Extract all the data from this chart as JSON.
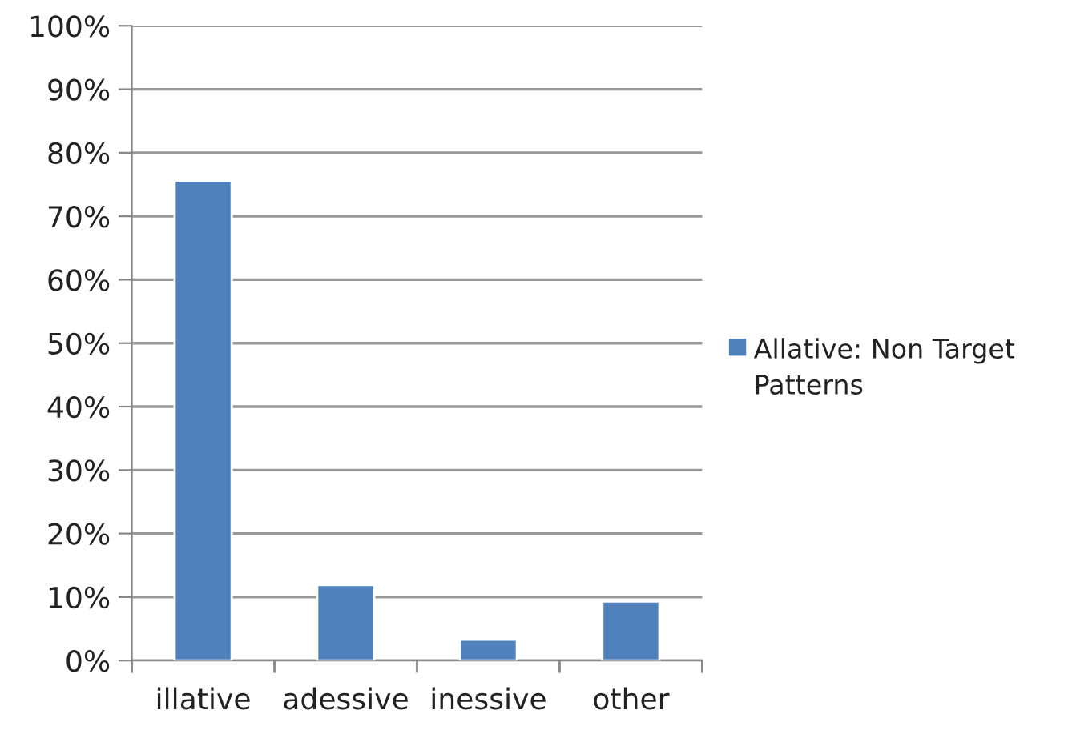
{
  "chart_data": {
    "type": "bar",
    "categories": [
      "illative",
      "adessive",
      "inessive",
      "other"
    ],
    "series": [
      {
        "name": "Allative: Non Target Patterns",
        "color": "#4f81bd",
        "values": [
          75.6,
          11.9,
          3.3,
          9.3
        ]
      }
    ],
    "ylim": [
      0,
      100
    ],
    "yticks": [
      {
        "value": 0,
        "label": "0%"
      },
      {
        "value": 10,
        "label": "10%"
      },
      {
        "value": 20,
        "label": "20%"
      },
      {
        "value": 30,
        "label": "30%"
      },
      {
        "value": 40,
        "label": "40%"
      },
      {
        "value": 50,
        "label": "50%"
      },
      {
        "value": 60,
        "label": "60%"
      },
      {
        "value": 70,
        "label": "70%"
      },
      {
        "value": 80,
        "label": "80%"
      },
      {
        "value": 90,
        "label": "90%"
      },
      {
        "value": 100,
        "label": "100%"
      }
    ],
    "grid": "y",
    "legend": "right"
  }
}
